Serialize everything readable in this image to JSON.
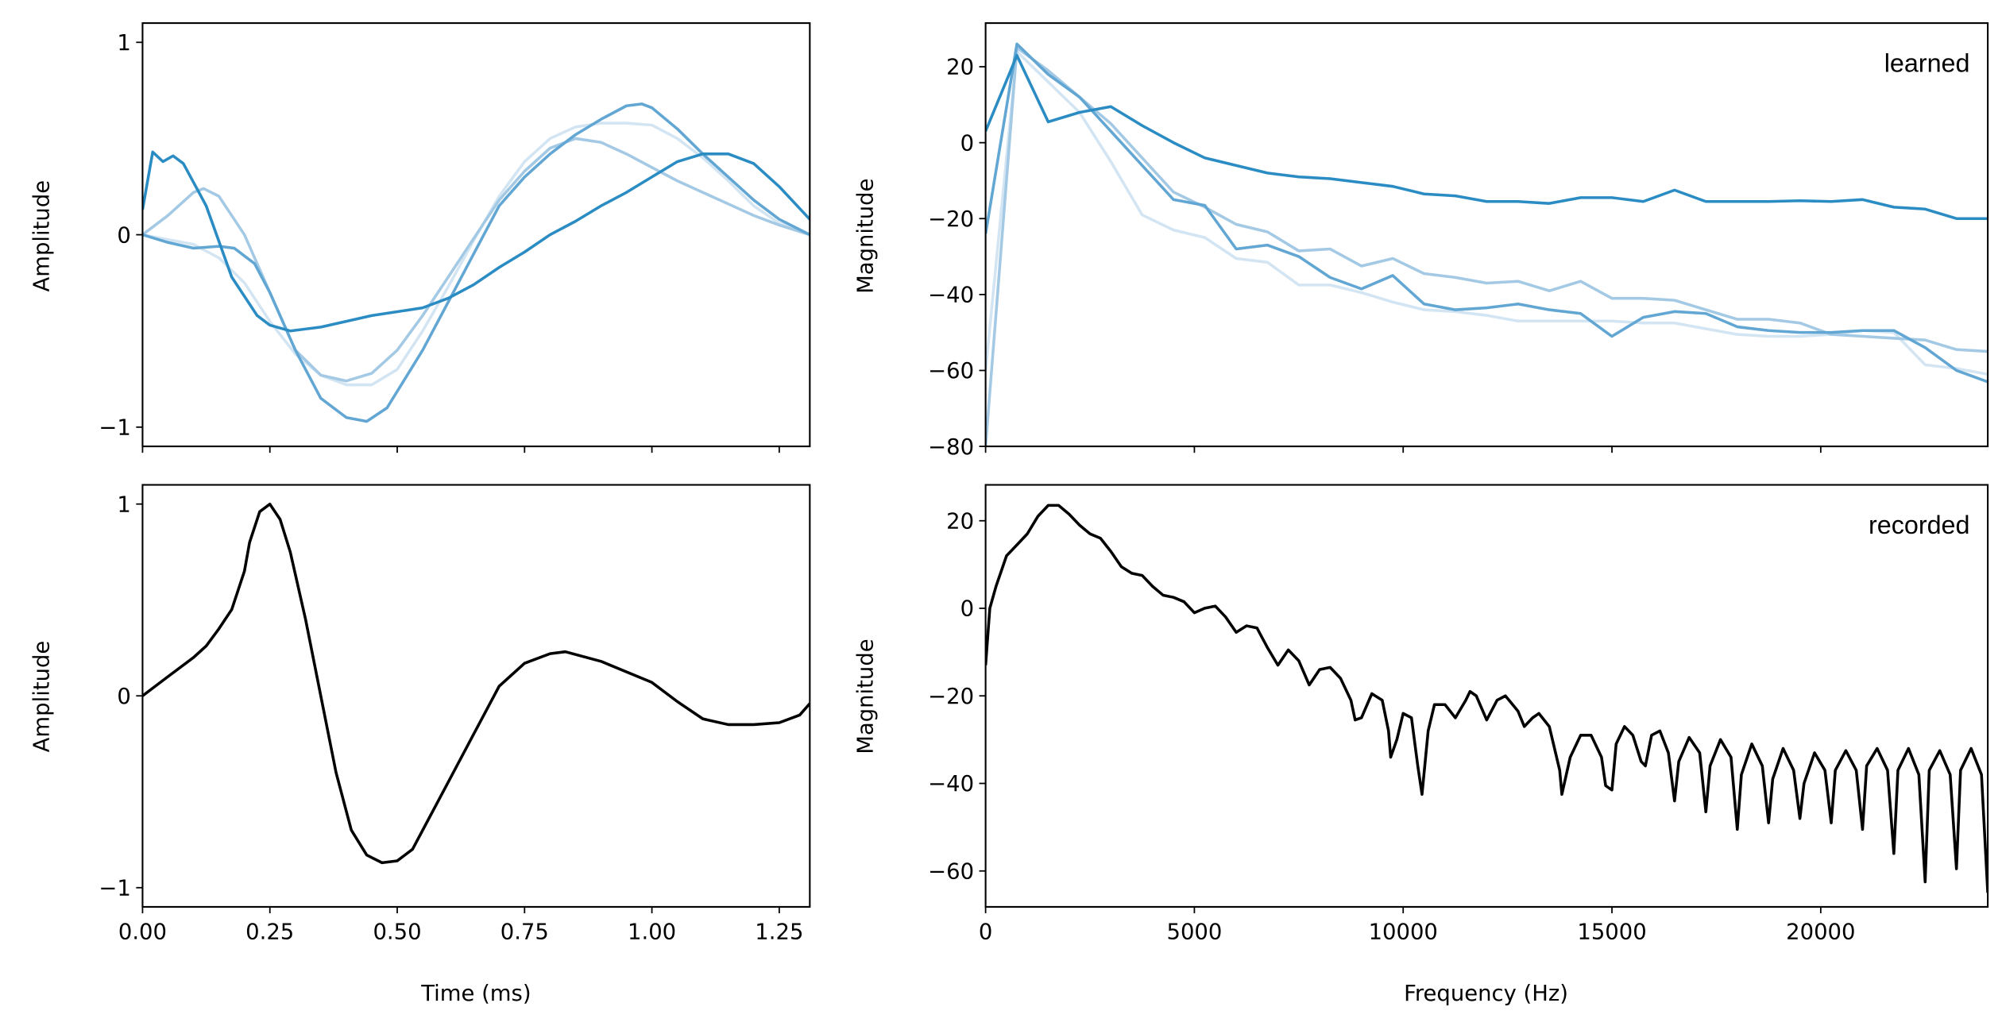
{
  "chart_data": [
    {
      "type": "line",
      "panel": "top-left",
      "xlabel": "",
      "ylabel": "Amplitude",
      "annotation": "",
      "xlim": [
        0,
        1.31
      ],
      "ylim": [
        -1.1,
        1.1
      ],
      "xticks": [
        0,
        0.25,
        0.5,
        0.75,
        1.0,
        1.25
      ],
      "xtick_labels": [],
      "yticks": [
        1,
        0,
        -1
      ],
      "ytick_labels": [
        "1",
        "0",
        "−1"
      ],
      "series": [
        {
          "color": "#d3e5f3",
          "x": [
            0,
            0.1,
            0.15,
            0.2,
            0.25,
            0.3,
            0.35,
            0.4,
            0.45,
            0.5,
            0.55,
            0.6,
            0.65,
            0.7,
            0.75,
            0.8,
            0.85,
            0.9,
            0.95,
            1.0,
            1.05,
            1.1,
            1.15,
            1.2,
            1.25,
            1.31
          ],
          "y": [
            0,
            -0.05,
            -0.12,
            -0.25,
            -0.45,
            -0.62,
            -0.73,
            -0.78,
            -0.78,
            -0.7,
            -0.5,
            -0.27,
            -0.03,
            0.2,
            0.38,
            0.5,
            0.56,
            0.58,
            0.58,
            0.57,
            0.5,
            0.4,
            0.28,
            0.15,
            0.06,
            0.0
          ]
        },
        {
          "color": "#a3c9e4",
          "x": [
            0,
            0.05,
            0.1,
            0.12,
            0.15,
            0.2,
            0.25,
            0.3,
            0.35,
            0.4,
            0.45,
            0.5,
            0.55,
            0.6,
            0.65,
            0.7,
            0.75,
            0.8,
            0.85,
            0.9,
            0.95,
            1.0,
            1.05,
            1.1,
            1.15,
            1.2,
            1.25,
            1.31
          ],
          "y": [
            0,
            0.1,
            0.22,
            0.24,
            0.2,
            0.0,
            -0.3,
            -0.6,
            -0.73,
            -0.76,
            -0.72,
            -0.6,
            -0.42,
            -0.22,
            -0.02,
            0.18,
            0.33,
            0.45,
            0.5,
            0.48,
            0.42,
            0.35,
            0.28,
            0.22,
            0.16,
            0.1,
            0.05,
            0.0
          ]
        },
        {
          "color": "#62a6d3",
          "x": [
            0,
            0.05,
            0.1,
            0.15,
            0.18,
            0.22,
            0.25,
            0.3,
            0.35,
            0.4,
            0.44,
            0.48,
            0.55,
            0.6,
            0.65,
            0.7,
            0.75,
            0.8,
            0.85,
            0.9,
            0.95,
            0.98,
            1.0,
            1.05,
            1.1,
            1.15,
            1.2,
            1.25,
            1.31
          ],
          "y": [
            0,
            -0.04,
            -0.07,
            -0.06,
            -0.07,
            -0.15,
            -0.3,
            -0.6,
            -0.85,
            -0.95,
            -0.97,
            -0.9,
            -0.6,
            -0.35,
            -0.1,
            0.15,
            0.3,
            0.42,
            0.52,
            0.6,
            0.67,
            0.68,
            0.66,
            0.55,
            0.42,
            0.3,
            0.18,
            0.08,
            0.0
          ]
        },
        {
          "color": "#2b8cc4",
          "x": [
            0,
            0.02,
            0.04,
            0.06,
            0.08,
            0.125,
            0.175,
            0.225,
            0.25,
            0.29,
            0.35,
            0.4,
            0.45,
            0.5,
            0.55,
            0.6,
            0.65,
            0.7,
            0.75,
            0.8,
            0.85,
            0.9,
            0.95,
            1.0,
            1.05,
            1.1,
            1.15,
            1.2,
            1.25,
            1.31
          ],
          "y": [
            0.13,
            0.43,
            0.38,
            0.41,
            0.37,
            0.15,
            -0.22,
            -0.42,
            -0.47,
            -0.5,
            -0.48,
            -0.45,
            -0.42,
            -0.4,
            -0.38,
            -0.33,
            -0.26,
            -0.17,
            -0.09,
            0.0,
            0.07,
            0.15,
            0.22,
            0.3,
            0.38,
            0.42,
            0.42,
            0.37,
            0.25,
            0.08
          ]
        }
      ]
    },
    {
      "type": "line",
      "panel": "top-right",
      "xlabel": "",
      "ylabel": "Magnitude",
      "annotation": "learned",
      "xlim": [
        0,
        24000
      ],
      "ylim": [
        -80,
        31.5
      ],
      "xticks": [
        0,
        5000,
        10000,
        15000,
        20000
      ],
      "xtick_labels": [],
      "yticks": [
        20,
        0,
        -20,
        -40,
        -60,
        -80
      ],
      "ytick_labels": [
        "20",
        "0",
        "−20",
        "−40",
        "−60",
        "−80"
      ],
      "series": [
        {
          "color": "#d3e5f3",
          "y": [
            -60,
            24,
            16,
            8,
            -5,
            -19,
            -23,
            -25,
            -30.5,
            -31.5,
            -37.5,
            -37.5,
            -39.5,
            -42,
            -44,
            -44.5,
            -45.5,
            -47,
            -47,
            -47,
            -47,
            -47.5,
            -47.5,
            -49,
            -50.5,
            -51,
            -51,
            -50.5,
            -49.5,
            -50,
            -58.5,
            -59.5,
            -61
          ]
        },
        {
          "color": "#a3c9e4",
          "y": [
            -80,
            25,
            19,
            12,
            5,
            -4,
            -13,
            -17,
            -21.5,
            -23.5,
            -28.5,
            -28,
            -32.5,
            -30.5,
            -34.5,
            -35.5,
            -37,
            -36.5,
            -39,
            -36.5,
            -41,
            -41,
            -41.5,
            -44,
            -46.5,
            -46.5,
            -47.5,
            -50.5,
            -51,
            -51.5,
            -52,
            -54.5,
            -55
          ]
        },
        {
          "color": "#62a6d3",
          "y": [
            -24,
            26,
            18,
            12,
            3,
            -6,
            -15,
            -16.5,
            -28,
            -27,
            -30,
            -35.5,
            -38.5,
            -35,
            -42.5,
            -44,
            -43.5,
            -42.5,
            -44,
            -45,
            -51,
            -46,
            -44.5,
            -45,
            -48.5,
            -49.5,
            -50,
            -50,
            -49.5,
            -49.5,
            -54,
            -60,
            -63
          ]
        },
        {
          "color": "#2b8cc4",
          "y": [
            3,
            23,
            5.5,
            8,
            9.5,
            4.5,
            0,
            -4,
            -6,
            -8,
            -9,
            -9.5,
            -10.5,
            -11.5,
            -13.5,
            -14,
            -15.5,
            -15.5,
            -16,
            -14.5,
            -14.5,
            -15.5,
            -12.5,
            -15.5,
            -15.5,
            -15.5,
            -15.3,
            -15.5,
            -15,
            -17,
            -17.5,
            -20,
            -20
          ]
        }
      ],
      "x_step": 750
    },
    {
      "type": "line",
      "panel": "bottom-left",
      "xlabel": "Time (ms)",
      "ylabel": "Amplitude",
      "annotation": "",
      "xlim": [
        0,
        1.31
      ],
      "ylim": [
        -1.1,
        1.1
      ],
      "xticks": [
        0,
        0.25,
        0.5,
        0.75,
        1.0,
        1.25
      ],
      "xtick_labels": [
        "0.00",
        "0.25",
        "0.50",
        "0.75",
        "1.00",
        "1.25"
      ],
      "yticks": [
        1,
        0,
        -1
      ],
      "ytick_labels": [
        "1",
        "0",
        "−1"
      ],
      "series": [
        {
          "color": "#000000",
          "x": [
            0,
            0.05,
            0.1,
            0.125,
            0.15,
            0.175,
            0.2,
            0.21,
            0.23,
            0.25,
            0.27,
            0.29,
            0.32,
            0.35,
            0.38,
            0.41,
            0.44,
            0.47,
            0.5,
            0.53,
            0.56,
            0.6,
            0.65,
            0.7,
            0.75,
            0.8,
            0.83,
            0.9,
            1.0,
            1.05,
            1.1,
            1.15,
            1.2,
            1.25,
            1.29,
            1.31
          ],
          "y": [
            0,
            0.1,
            0.2,
            0.26,
            0.35,
            0.45,
            0.65,
            0.8,
            0.96,
            1.0,
            0.92,
            0.75,
            0.4,
            0.0,
            -0.4,
            -0.7,
            -0.83,
            -0.87,
            -0.86,
            -0.8,
            -0.65,
            -0.45,
            -0.2,
            0.05,
            0.17,
            0.22,
            0.23,
            0.18,
            0.07,
            -0.03,
            -0.12,
            -0.15,
            -0.15,
            -0.14,
            -0.1,
            -0.04
          ]
        }
      ]
    },
    {
      "type": "line",
      "panel": "bottom-right",
      "xlabel": "Frequency (Hz)",
      "ylabel": "Magnitude",
      "annotation": "recorded",
      "xlim": [
        0,
        24000
      ],
      "ylim": [
        -68.2,
        28.2
      ],
      "xticks": [
        0,
        5000,
        10000,
        15000,
        20000
      ],
      "xtick_labels": [
        "0",
        "5000",
        "10000",
        "15000",
        "20000"
      ],
      "yticks": [
        20,
        0,
        -20,
        -40,
        -60
      ],
      "ytick_labels": [
        "20",
        "0",
        "−20",
        "−40",
        "−60"
      ],
      "series": [
        {
          "color": "#000000",
          "x": [
            0,
            100,
            250,
            500,
            750,
            1000,
            1250,
            1500,
            1750,
            2000,
            2250,
            2500,
            2750,
            3000,
            3250,
            3500,
            3750,
            4000,
            4250,
            4500,
            4750,
            5000,
            5250,
            5500,
            5750,
            6000,
            6250,
            6500,
            6750,
            7000,
            7250,
            7500,
            7750,
            8000,
            8250,
            8500,
            8750,
            8850,
            9000,
            9250,
            9500,
            9650,
            9700,
            9850,
            10000,
            10200,
            10350,
            10450,
            10600,
            10750,
            11000,
            11250,
            11500,
            11600,
            11750,
            12000,
            12250,
            12450,
            12750,
            12900,
            13100,
            13250,
            13500,
            13750,
            13800,
            14000,
            14250,
            14500,
            14750,
            14850,
            15000,
            15100,
            15300,
            15500,
            15700,
            15800,
            15950,
            16150,
            16350,
            16500,
            16600,
            16850,
            17100,
            17250,
            17350,
            17600,
            17850,
            18000,
            18100,
            18350,
            18600,
            18750,
            18850,
            19100,
            19350,
            19500,
            19600,
            19850,
            20100,
            20250,
            20350,
            20600,
            20850,
            21000,
            21100,
            21350,
            21600,
            21750,
            21850,
            22100,
            22350,
            22500,
            22600,
            22850,
            23100,
            23250,
            23350,
            23600,
            23850,
            24000
          ],
          "y": [
            -13,
            0,
            5,
            12,
            14.5,
            17,
            21,
            23.5,
            23.5,
            21.5,
            19,
            17,
            16,
            13,
            9.5,
            8,
            7.5,
            5,
            3,
            2.5,
            1.5,
            -1,
            0,
            0.5,
            -2,
            -5.5,
            -4,
            -4.5,
            -9,
            -13,
            -9.5,
            -12,
            -17.5,
            -14,
            -13.5,
            -16,
            -21,
            -25.5,
            -25,
            -19.5,
            -21,
            -28,
            -34,
            -30,
            -24,
            -25,
            -36,
            -42.5,
            -28,
            -22,
            -22,
            -25,
            -21,
            -19,
            -20,
            -25.5,
            -21,
            -20,
            -23.5,
            -27,
            -25,
            -24,
            -27,
            -37,
            -42.5,
            -34,
            -29,
            -29,
            -34,
            -40.5,
            -41.5,
            -31,
            -27,
            -29,
            -35,
            -36,
            -29,
            -28,
            -33,
            -44,
            -35,
            -29.5,
            -33,
            -46.5,
            -36,
            -30,
            -34,
            -50.5,
            -38,
            -31,
            -36,
            -49,
            -39,
            -32,
            -37,
            -48,
            -40,
            -33,
            -37,
            -49,
            -37,
            -32.5,
            -37,
            -50.5,
            -36,
            -32,
            -37,
            -56,
            -37,
            -32,
            -38,
            -62.5,
            -37,
            -32.5,
            -38,
            -59.5,
            -37,
            -32,
            -38,
            -65
          ]
        }
      ]
    }
  ]
}
